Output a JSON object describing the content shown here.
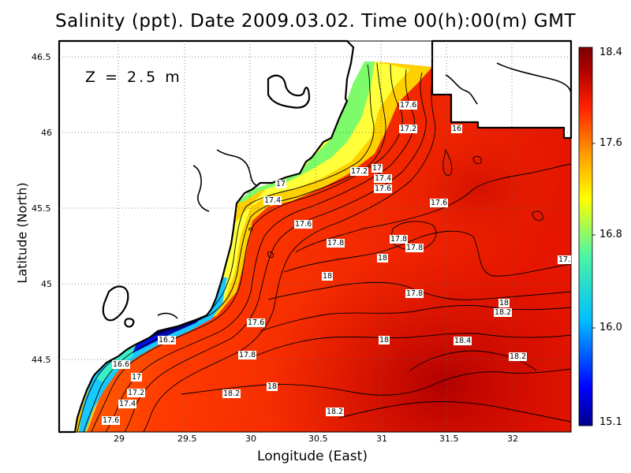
{
  "title": "Salinity (ppt). Date 2009.03.02. Time 00(h):00(m) GMT",
  "depth_label": "Z = 2.5 m",
  "axes": {
    "xlabel": "Longitude (East)",
    "ylabel": "Latitude (North)",
    "x_ticks": [
      "29",
      "29.5",
      "30",
      "30.5",
      "31",
      "31.5",
      "32"
    ],
    "y_ticks": [
      "46.5",
      "46",
      "45.5",
      "45",
      "44.5"
    ]
  },
  "colorbar": {
    "ticks": [
      "18.4",
      "17.6",
      "16.8",
      "16.0",
      "15.1"
    ],
    "min": 15.1,
    "max": 18.4,
    "colors": [
      "#00008b",
      "#0000ff",
      "#00bfff",
      "#4cf5a4",
      "#ffff00",
      "#ff9900",
      "#ff2200",
      "#b00000",
      "#7a0000"
    ]
  },
  "contour_labels": [
    "17.6",
    "17.2",
    "16",
    "17.2",
    "17",
    "17.4",
    "17.6",
    "17",
    "17.4",
    "17.6",
    "17.6",
    "17.8",
    "17.8",
    "18",
    "17.8",
    "18",
    "17.8",
    "18",
    "18.2",
    "17.6",
    "16.2",
    "18",
    "18.4",
    "17.8",
    "18.2",
    "16.6",
    "17",
    "18",
    "17.2",
    "18.2",
    "17.4",
    "18.2",
    "17.6",
    "17."
  ],
  "chart_data": {
    "type": "heatmap",
    "title": "Salinity (ppt). Date 2009.03.02. Time 00(h):00(m) GMT",
    "xlabel": "Longitude (East)",
    "ylabel": "Latitude (North)",
    "xlim": [
      28.5,
      32.45
    ],
    "ylim": [
      44.05,
      46.6
    ],
    "colorbar_range": [
      15.1,
      18.4
    ],
    "grid": true,
    "contour_levels": [
      16.2,
      16.6,
      17.0,
      17.2,
      17.4,
      17.6,
      17.8,
      18.0,
      18.2,
      18.4
    ]
  }
}
